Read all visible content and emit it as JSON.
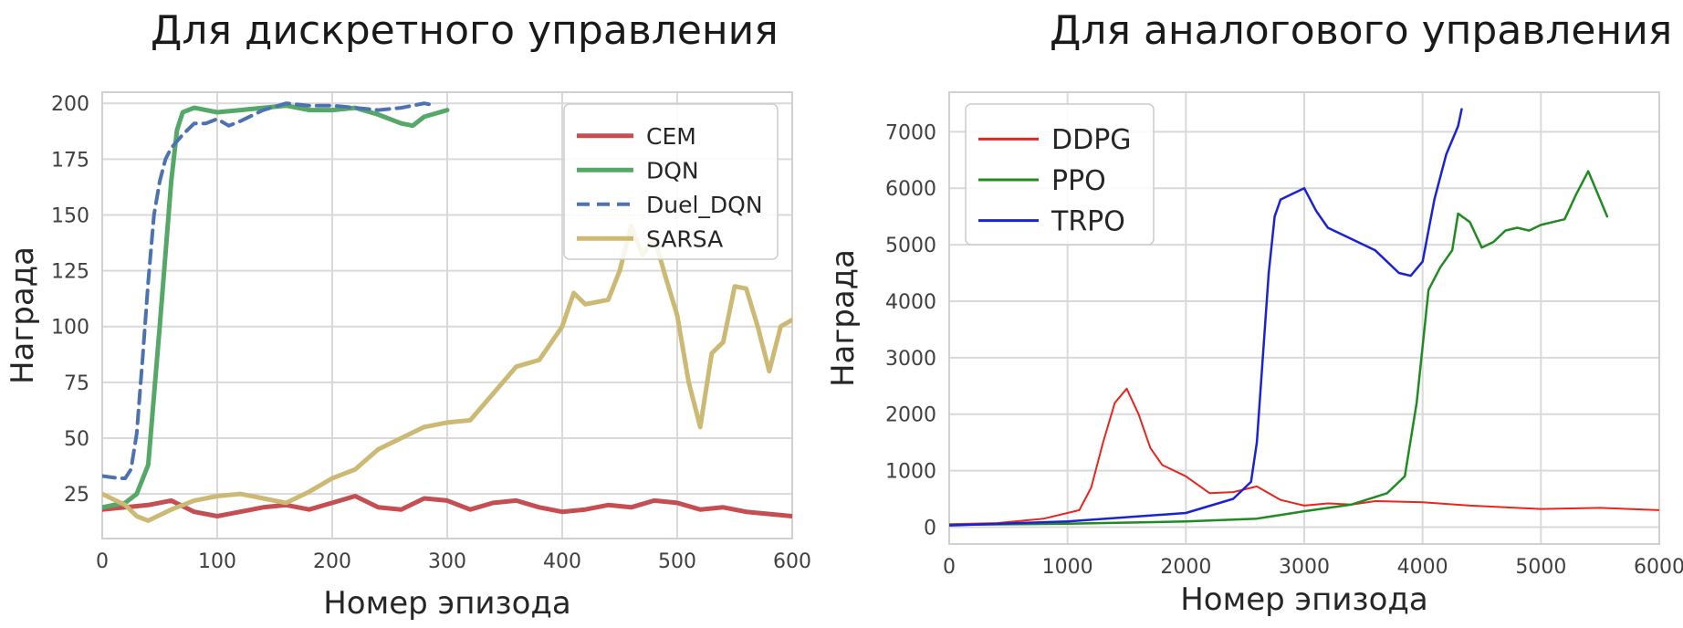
{
  "titles": {
    "left": "Для дискретного управления",
    "right": "Для аналогового управления"
  },
  "chart_data": [
    {
      "type": "line",
      "title": "Для дискретного управления",
      "xlabel": "Номер эпизода",
      "ylabel": "Награда",
      "xlim": [
        0,
        600
      ],
      "ylim": [
        5,
        205
      ],
      "xticks": [
        0,
        100,
        200,
        300,
        400,
        500,
        600
      ],
      "yticks": [
        25,
        50,
        75,
        100,
        125,
        150,
        175,
        200
      ],
      "grid": true,
      "legend": "top-right",
      "series": [
        {
          "name": "CEM",
          "color": "#c44e52",
          "dash": "solid",
          "width": 5,
          "x": [
            0,
            20,
            40,
            60,
            80,
            100,
            120,
            140,
            160,
            180,
            200,
            220,
            240,
            260,
            280,
            300,
            320,
            340,
            360,
            380,
            400,
            420,
            440,
            460,
            480,
            500,
            520,
            540,
            560,
            580,
            600
          ],
          "y": [
            18,
            19,
            20,
            22,
            17,
            15,
            17,
            19,
            20,
            18,
            21,
            24,
            19,
            18,
            23,
            22,
            18,
            21,
            22,
            19,
            17,
            18,
            20,
            19,
            22,
            21,
            18,
            19,
            17,
            16,
            15
          ]
        },
        {
          "name": "DQN",
          "color": "#55a868",
          "dash": "solid",
          "width": 5,
          "x": [
            0,
            20,
            30,
            40,
            50,
            60,
            65,
            70,
            80,
            100,
            120,
            140,
            160,
            180,
            200,
            220,
            240,
            260,
            270,
            280,
            300
          ],
          "y": [
            19,
            21,
            25,
            38,
            100,
            165,
            188,
            196,
            198,
            196,
            197,
            198,
            199,
            197,
            197,
            198,
            195,
            191,
            190,
            194,
            197
          ]
        },
        {
          "name": "Duel_DQN",
          "color": "#4c72b0",
          "dash": "dashed",
          "width": 4,
          "x": [
            0,
            15,
            20,
            25,
            30,
            35,
            40,
            45,
            50,
            55,
            60,
            70,
            80,
            90,
            100,
            110,
            120,
            140,
            160,
            180,
            200,
            220,
            240,
            260,
            280,
            290
          ],
          "y": [
            33,
            32,
            32,
            36,
            52,
            85,
            120,
            150,
            165,
            175,
            180,
            186,
            191,
            191,
            193,
            190,
            192,
            197,
            200,
            199,
            199,
            198,
            197,
            198,
            200,
            199
          ]
        },
        {
          "name": "SARSA",
          "color": "#ccb974",
          "dash": "solid",
          "width": 5,
          "x": [
            0,
            20,
            30,
            40,
            60,
            80,
            100,
            120,
            140,
            160,
            180,
            200,
            220,
            240,
            260,
            280,
            300,
            320,
            340,
            360,
            380,
            400,
            410,
            420,
            440,
            450,
            460,
            470,
            480,
            490,
            500,
            510,
            520,
            530,
            540,
            550,
            560,
            570,
            580,
            590,
            600
          ],
          "y": [
            25,
            20,
            15,
            13,
            18,
            22,
            24,
            25,
            23,
            21,
            26,
            32,
            36,
            45,
            50,
            55,
            57,
            58,
            70,
            82,
            85,
            100,
            115,
            110,
            112,
            125,
            145,
            132,
            140,
            122,
            105,
            75,
            55,
            88,
            93,
            118,
            117,
            100,
            80,
            100,
            103
          ]
        }
      ]
    },
    {
      "type": "line",
      "xlabel": "Номер эпизода",
      "ylabel": "Награда",
      "xlim": [
        0,
        6000
      ],
      "ylim": [
        -300,
        7700
      ],
      "xticks": [
        0,
        1000,
        2000,
        3000,
        4000,
        5000,
        6000
      ],
      "yticks": [
        0,
        1000,
        2000,
        3000,
        4000,
        5000,
        6000,
        7000
      ],
      "grid": true,
      "legend": "top-left",
      "series": [
        {
          "name": "DDPG",
          "color": "#e8251e",
          "dash": "solid",
          "width": 2,
          "x": [
            0,
            400,
            800,
            1100,
            1200,
            1300,
            1400,
            1500,
            1600,
            1700,
            1800,
            2000,
            2200,
            2400,
            2600,
            2800,
            3000,
            3200,
            3400,
            3600,
            4000,
            4400,
            5000,
            5500,
            6000
          ],
          "y": [
            50,
            70,
            150,
            300,
            700,
            1500,
            2200,
            2450,
            2000,
            1400,
            1100,
            900,
            600,
            620,
            720,
            480,
            380,
            420,
            400,
            460,
            440,
            380,
            320,
            340,
            300
          ]
        },
        {
          "name": "PPO",
          "color": "#218b21",
          "dash": "solid",
          "width": 2.5,
          "x": [
            0,
            1000,
            2000,
            2600,
            3000,
            3400,
            3700,
            3850,
            3950,
            4050,
            4150,
            4250,
            4300,
            4400,
            4500,
            4600,
            4700,
            4800,
            4900,
            5000,
            5100,
            5200,
            5300,
            5400,
            5500,
            5560
          ],
          "y": [
            40,
            60,
            100,
            150,
            280,
            400,
            600,
            900,
            2200,
            4200,
            4600,
            4900,
            5550,
            5400,
            4950,
            5050,
            5250,
            5300,
            5250,
            5350,
            5400,
            5450,
            5900,
            6300,
            5800,
            5500
          ]
        },
        {
          "name": "TRPO",
          "color": "#1a22d6",
          "dash": "solid",
          "width": 2.5,
          "x": [
            0,
            1000,
            2000,
            2400,
            2550,
            2600,
            2650,
            2700,
            2750,
            2800,
            2900,
            3000,
            3100,
            3200,
            3400,
            3600,
            3800,
            3900,
            4000,
            4100,
            4200,
            4300,
            4330
          ],
          "y": [
            30,
            100,
            250,
            500,
            800,
            1500,
            3000,
            4500,
            5500,
            5800,
            5900,
            6000,
            5600,
            5300,
            5100,
            4900,
            4500,
            4450,
            4700,
            5800,
            6600,
            7100,
            7400
          ]
        }
      ]
    }
  ]
}
